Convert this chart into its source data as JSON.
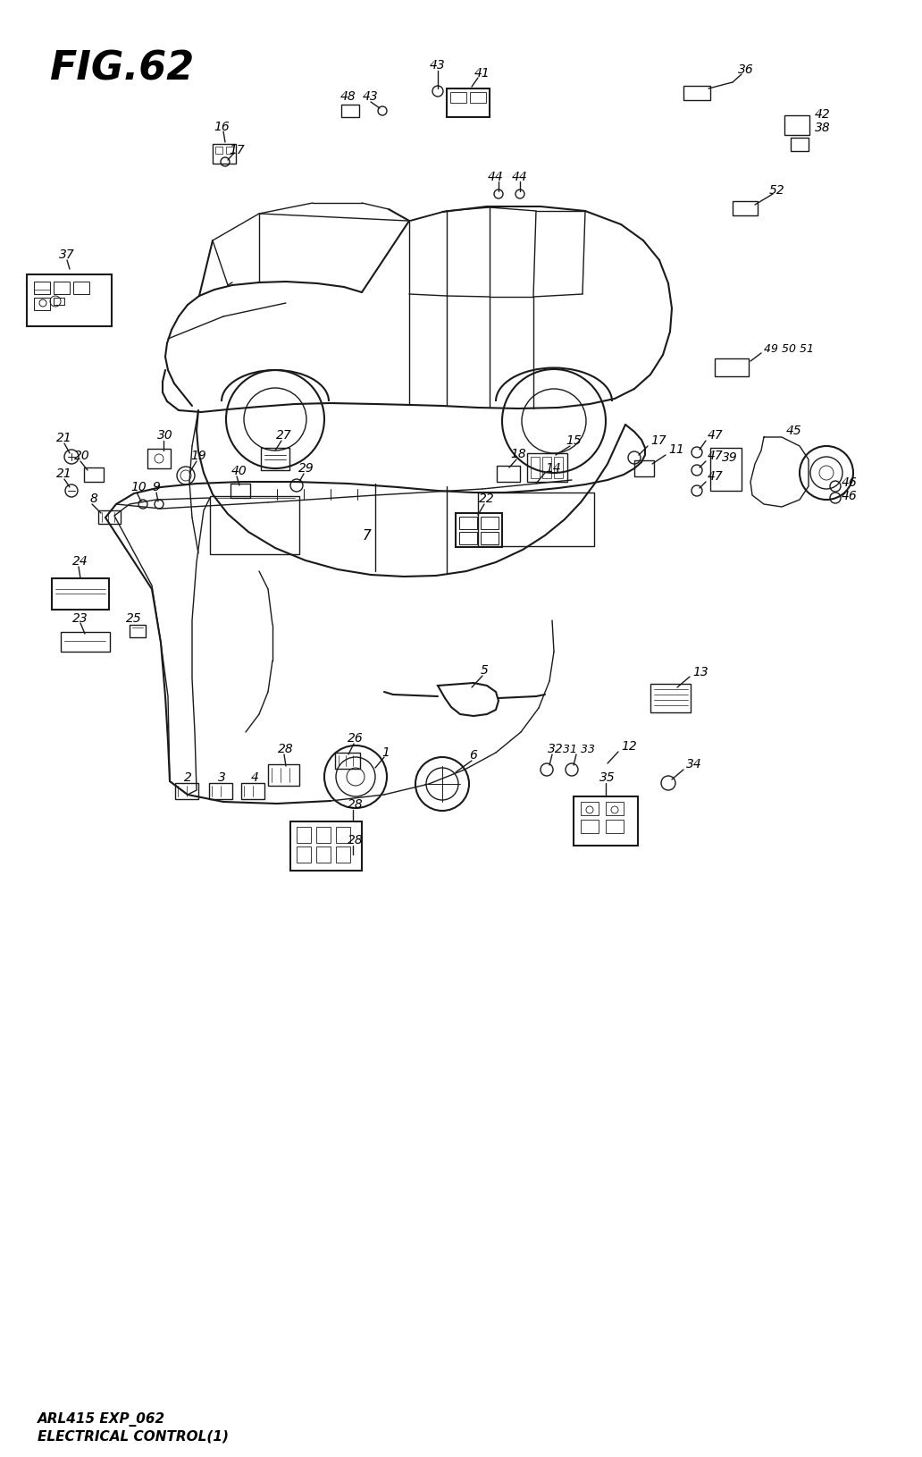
{
  "bg_color": "#ffffff",
  "line_color": "#1a1a1a",
  "fig_width": 10.32,
  "fig_height": 16.31,
  "title": "FIG.62",
  "sub1": "ARL415 EXP_062",
  "sub2": "ELECTRICAL CONTROL(1)"
}
